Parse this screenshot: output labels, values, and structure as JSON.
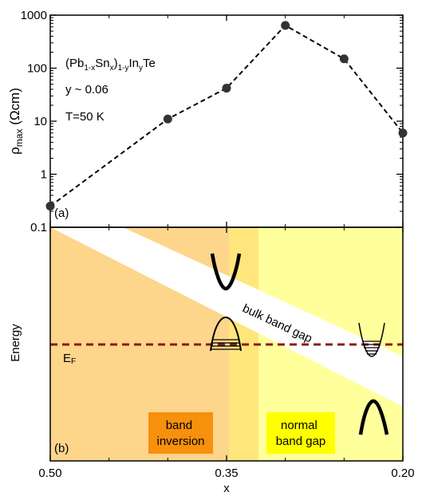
{
  "chart_data": [
    {
      "panel": "(a)",
      "type": "line",
      "xlim": [
        0.5,
        0.2
      ],
      "x_reversed": true,
      "ylog": true,
      "ylim": [
        0.1,
        1000
      ],
      "yticks": [
        "0.1",
        "1",
        "10",
        "100",
        "1000"
      ],
      "ylabel_main": "ρ",
      "ylabel_sub": "max",
      "ylabel_unit": " (Ωcm)",
      "line_style": "dashed",
      "marker": "filled-circle",
      "x": [
        0.5,
        0.4,
        0.35,
        0.3,
        0.25,
        0.2
      ],
      "y": [
        0.25,
        11,
        42,
        640,
        150,
        6
      ],
      "annotations": {
        "formula": [
          "(Pb",
          "1-x",
          "Sn",
          "x",
          ")",
          "1-y",
          "In",
          "y",
          "Te"
        ],
        "y_value": "y ~ 0.06",
        "temperature": "T=50 K"
      },
      "colors": {
        "line": "#000000",
        "marker": "#333333"
      }
    },
    {
      "panel": "(b)",
      "type": "diagram",
      "xlim": [
        0.5,
        0.2
      ],
      "x_reversed": true,
      "xticks": [
        "0.50",
        "0.35",
        "0.20"
      ],
      "xlabel": "x",
      "ylabel": "Energy",
      "fermi_label_main": "E",
      "fermi_label_sub": "F",
      "band_gap_label": "bulk band gap",
      "regions": [
        {
          "label_lines": [
            "band",
            "inversion"
          ],
          "color": "#f7900c"
        },
        {
          "label_lines": [
            "normal",
            "band gap"
          ],
          "color": "#ffff00"
        }
      ],
      "colors": {
        "inversion_bg": "#fdd58b",
        "transition_bg": "#ffe67c",
        "normal_bg": "#ffff9c",
        "fermi_line": "#8b1a1a",
        "fermi_label": "#a0271f",
        "gap_label": "#6b3a1f"
      }
    }
  ]
}
